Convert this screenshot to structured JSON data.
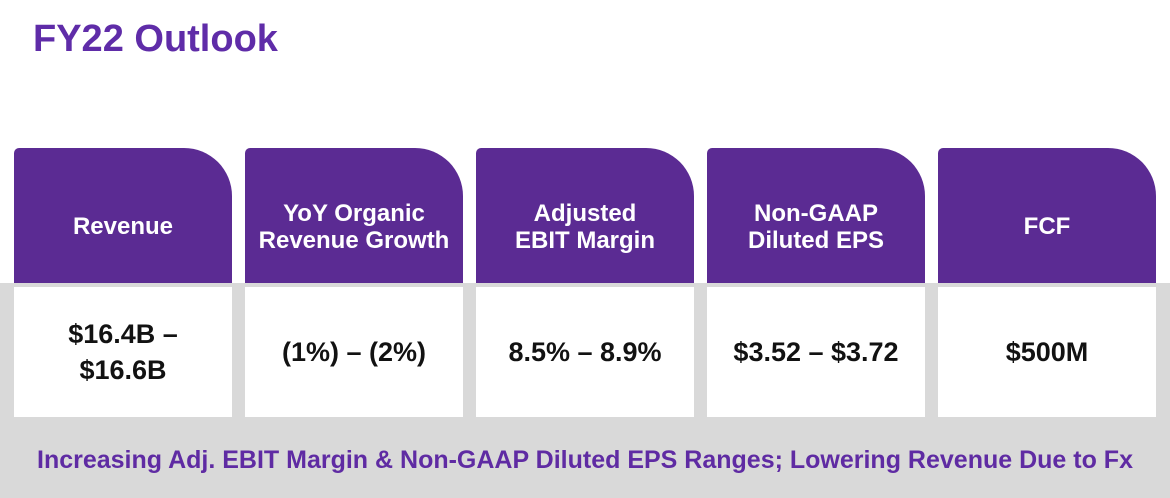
{
  "page": {
    "title": "FY22 Outlook",
    "footnote": "Increasing Adj. EBIT Margin & Non-GAAP Diluted EPS Ranges; Lowering Revenue Due to Fx"
  },
  "colors": {
    "header_purple": "#5b2b93",
    "title_purple": "#5f2ca8",
    "footnote_purple": "#5f2ba3",
    "background_band_gray": "#d9d9d9",
    "card_body_white": "#ffffff",
    "value_text_black": "#121212"
  },
  "cards": [
    {
      "label": "Revenue",
      "value": "$16.4B –\n$16.6B"
    },
    {
      "label": "YoY Organic\nRevenue Growth",
      "value": "(1%) – (2%)"
    },
    {
      "label": "Adjusted\nEBIT Margin",
      "value": "8.5% – 8.9%"
    },
    {
      "label": "Non-GAAP\nDiluted EPS",
      "value": "$3.52 – $3.72"
    },
    {
      "label": "FCF",
      "value": "$500M"
    }
  ]
}
